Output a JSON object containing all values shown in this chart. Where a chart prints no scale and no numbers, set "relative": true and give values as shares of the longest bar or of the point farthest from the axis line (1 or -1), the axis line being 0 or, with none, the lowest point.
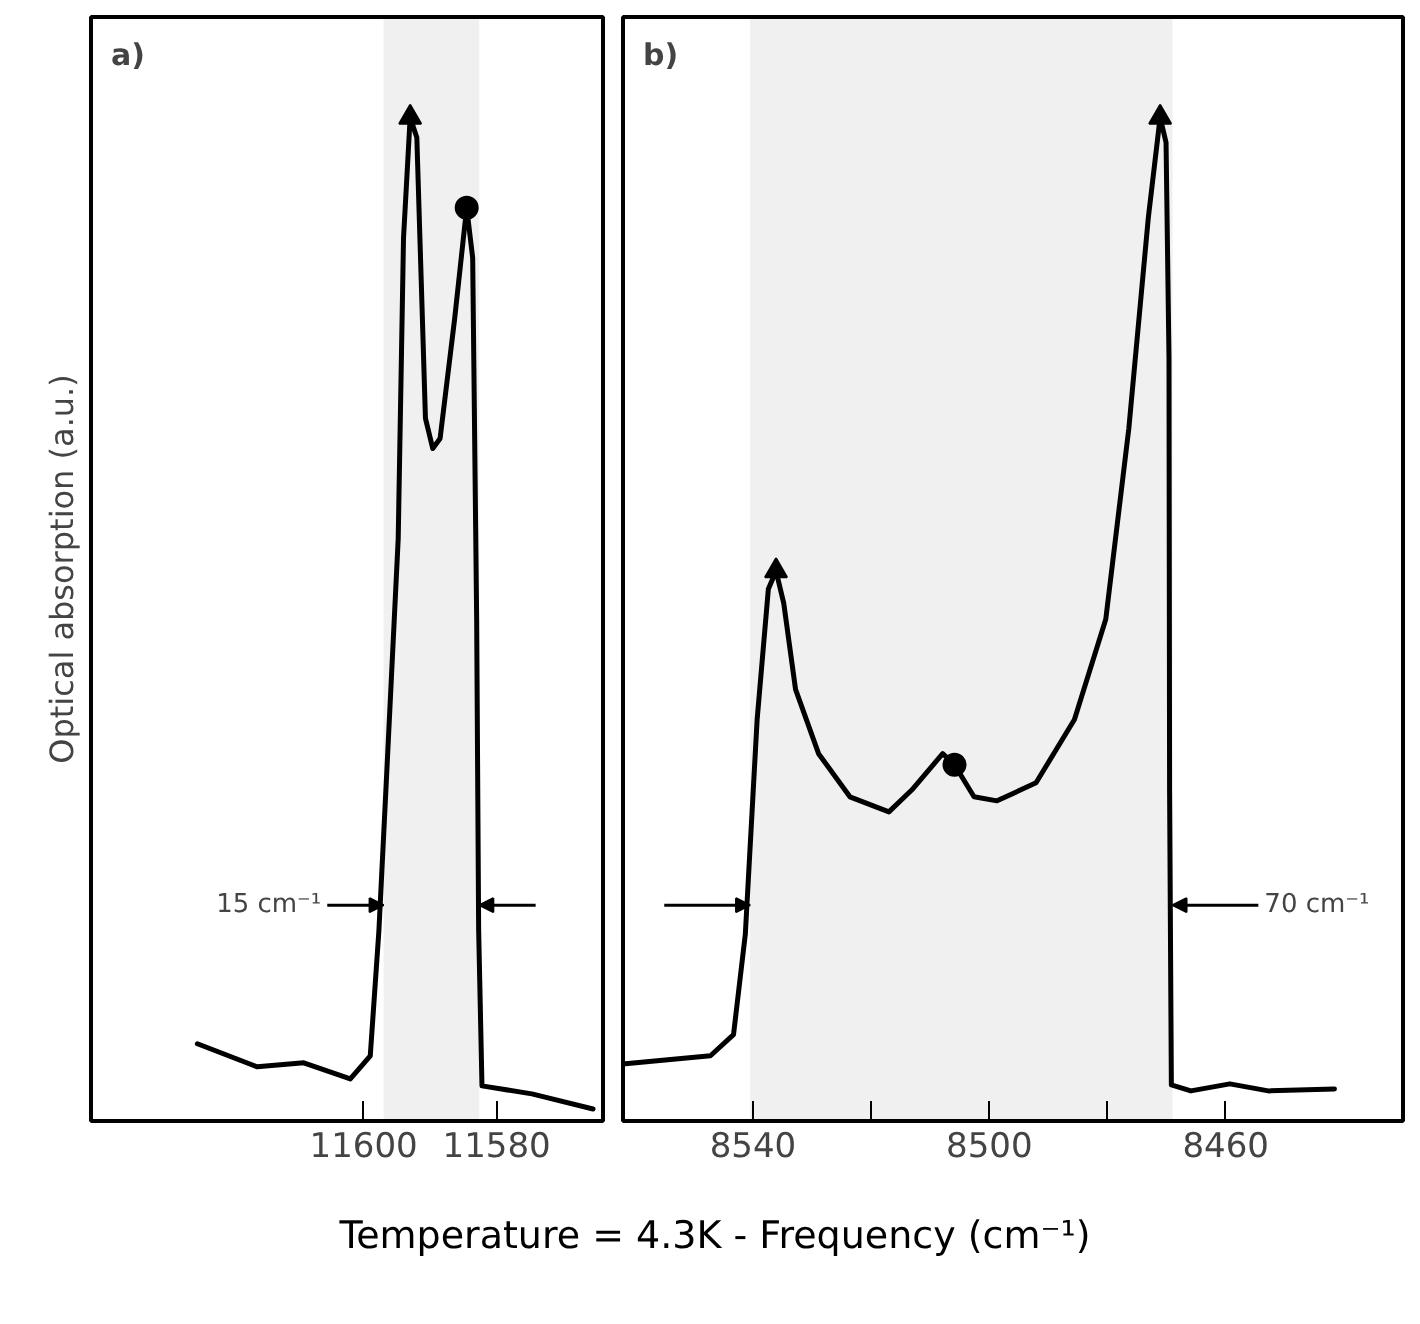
{
  "chart_data": [
    {
      "type": "line",
      "relative": true,
      "ylabel": "Optical absorption (a.u.)",
      "xlim": [
        11641,
        11564
      ],
      "xticks": [
        11600,
        11580
      ],
      "grid": false,
      "line_style": "solid",
      "annotations": [
        "a)"
      ],
      "bands": [
        {
          "axis": "x",
          "from": 11597,
          "to": 11582.6,
          "label": "15 cm⁻¹"
        }
      ],
      "series": [
        {
          "color": "#000000",
          "x": [
            11625,
            11616,
            11609,
            11602,
            11599,
            11597.7,
            11596.5,
            11594.8,
            11594,
            11593,
            11592,
            11590.7,
            11589.6,
            11588.5,
            11586.3,
            11584.5,
            11583.6,
            11583,
            11582.7,
            11582.2,
            11574.7,
            11565.5
          ],
          "values": [
            0.077,
            0.054,
            0.058,
            0.042,
            0.065,
            0.19,
            0.35,
            0.58,
            0.88,
            1.0,
            0.98,
            0.7,
            0.67,
            0.68,
            0.8,
            0.91,
            0.86,
            0.5,
            0.19,
            0.035,
            0.027,
            0.012
          ]
        },
        {
          "type": "scatter",
          "marker": "triangle",
          "color": "#000000",
          "x": [
            11593
          ],
          "values": [
            1.0
          ]
        },
        {
          "type": "scatter",
          "marker": "circle",
          "color": "#000000",
          "x": [
            11584.5
          ],
          "values": [
            0.91
          ]
        }
      ]
    },
    {
      "type": "line",
      "relative": true,
      "xlabel": "Temperature = 4.3K - Frequency (cm⁻¹)",
      "xlim": [
        8562,
        8430
      ],
      "xticks": [
        8540,
        {
          "value": 8520,
          "label": null
        },
        8500,
        {
          "value": 8480,
          "label": null
        },
        8460
      ],
      "grid": false,
      "line_style": "solid",
      "annotations": [
        "b)"
      ],
      "bands": [
        {
          "axis": "x",
          "from": 8540.5,
          "to": 8469,
          "label": "70 cm⁻¹"
        }
      ],
      "series": [
        {
          "color": "#000000",
          "x": [
            8561.6,
            8547.2,
            8543.3,
            8541.3,
            8539.3,
            8537.4,
            8536.1,
            8534.8,
            8532.8,
            8528.9,
            8523.6,
            8517.0,
            8513.1,
            8507.9,
            8505.9,
            8502.6,
            8498.7,
            8492.1,
            8485.6,
            8480.3,
            8476.4,
            8473.1,
            8471.1,
            8470.1,
            8469.6,
            8469.5,
            8469.2,
            8465.9,
            8459.3,
            8452.8,
            8441.6
          ],
          "values": [
            0.057,
            0.065,
            0.086,
            0.186,
            0.4,
            0.53,
            0.548,
            0.516,
            0.43,
            0.366,
            0.323,
            0.308,
            0.33,
            0.366,
            0.355,
            0.323,
            0.319,
            0.337,
            0.4,
            0.5,
            0.69,
            0.9,
            1.0,
            0.975,
            0.76,
            0.33,
            0.036,
            0.03,
            0.037,
            0.03,
            0.032
          ]
        },
        {
          "type": "scatter",
          "marker": "triangle",
          "color": "#000000",
          "x": [
            8536.1,
            8471.1
          ],
          "values": [
            0.548,
            1.0
          ]
        },
        {
          "type": "scatter",
          "marker": "circle",
          "color": "#000000",
          "x": [
            8505.9
          ],
          "values": [
            0.355
          ]
        }
      ]
    }
  ]
}
